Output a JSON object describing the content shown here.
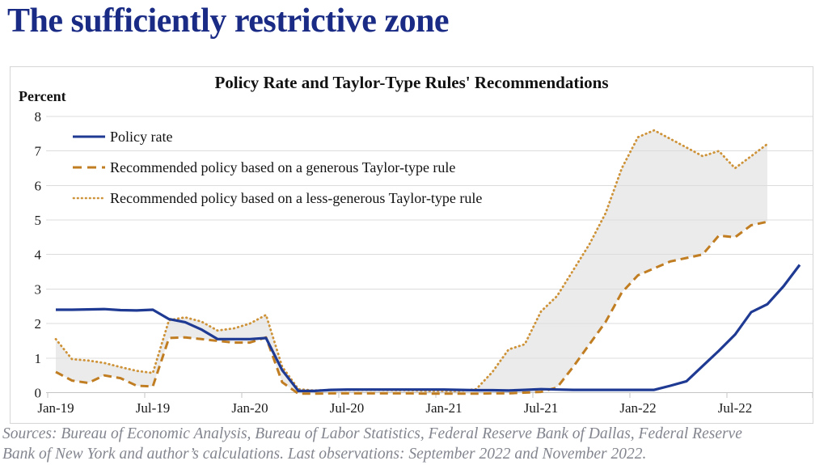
{
  "page": {
    "title": "The sufficiently restrictive zone"
  },
  "chart": {
    "title": "Policy Rate and Taylor-Type Rules' Recommendations",
    "axis_unit_label": "Percent",
    "legend": [
      {
        "label": "Policy rate",
        "style": "solid",
        "color": "#1F3A93"
      },
      {
        "label": "Recommended policy based on a generous Taylor-type rule",
        "style": "dashed",
        "color": "#C07D22"
      },
      {
        "label": "Recommended policy based on a less-generous Taylor-type rule",
        "style": "dotted",
        "color": "#CE9338"
      }
    ]
  },
  "chart_data": {
    "type": "line",
    "title": "Policy Rate and Taylor-Type Rules' Recommendations",
    "xlabel": "",
    "ylabel": "Percent",
    "ylim": [
      0,
      8
    ],
    "yticks": [
      0,
      1,
      2,
      3,
      4,
      5,
      6,
      7,
      8
    ],
    "x_tick_labels": [
      "Jan-19",
      "Jul-19",
      "Jan-20",
      "Jul-20",
      "Jan-21",
      "Jul-21",
      "Jan-22",
      "Jul-22"
    ],
    "grid": true,
    "legend_position": "top-left",
    "band_color": "#EBEBEB",
    "band_note": "gray zone shaded between the two Taylor-type rule series through Sep-2022",
    "x": [
      "Jan-19",
      "Feb-19",
      "Mar-19",
      "Apr-19",
      "May-19",
      "Jun-19",
      "Jul-19",
      "Aug-19",
      "Sep-19",
      "Oct-19",
      "Nov-19",
      "Dec-19",
      "Jan-20",
      "Feb-20",
      "Mar-20",
      "Apr-20",
      "May-20",
      "Jun-20",
      "Jul-20",
      "Aug-20",
      "Sep-20",
      "Oct-20",
      "Nov-20",
      "Dec-20",
      "Jan-21",
      "Feb-21",
      "Mar-21",
      "Apr-21",
      "May-21",
      "Jun-21",
      "Jul-21",
      "Aug-21",
      "Sep-21",
      "Oct-21",
      "Nov-21",
      "Dec-21",
      "Jan-22",
      "Feb-22",
      "Mar-22",
      "Apr-22",
      "May-22",
      "Jun-22",
      "Jul-22",
      "Aug-22",
      "Sep-22",
      "Oct-22",
      "Nov-22"
    ],
    "series": [
      {
        "name": "Policy rate",
        "color": "#1F3A93",
        "style": "solid",
        "last_observation": "November 2022",
        "values": [
          2.4,
          2.4,
          2.41,
          2.42,
          2.39,
          2.38,
          2.4,
          2.13,
          2.04,
          1.83,
          1.55,
          1.55,
          1.55,
          1.58,
          0.65,
          0.05,
          0.05,
          0.08,
          0.09,
          0.09,
          0.09,
          0.09,
          0.09,
          0.09,
          0.09,
          0.08,
          0.07,
          0.07,
          0.06,
          0.08,
          0.1,
          0.09,
          0.08,
          0.08,
          0.08,
          0.08,
          0.08,
          0.08,
          0.2,
          0.33,
          0.77,
          1.21,
          1.68,
          2.33,
          2.56,
          3.08,
          3.7
        ]
      },
      {
        "name": "Recommended policy based on a generous Taylor-type rule",
        "color": "#C07D22",
        "style": "dashed",
        "last_observation": "September 2022",
        "values": [
          0.6,
          0.35,
          0.28,
          0.5,
          0.42,
          0.2,
          0.18,
          1.58,
          1.6,
          1.55,
          1.5,
          1.45,
          1.45,
          1.6,
          0.3,
          -0.03,
          -0.03,
          -0.02,
          -0.02,
          -0.02,
          -0.02,
          -0.02,
          -0.02,
          -0.03,
          -0.03,
          -0.03,
          -0.03,
          -0.02,
          -0.02,
          0.0,
          0.02,
          0.15,
          0.75,
          1.4,
          2.05,
          2.9,
          3.4,
          3.6,
          3.8,
          3.9,
          4.0,
          4.55,
          4.5,
          4.85,
          4.95,
          null,
          null
        ]
      },
      {
        "name": "Recommended policy based on a less-generous Taylor-type rule",
        "color": "#CE9338",
        "style": "dotted",
        "last_observation": "September 2022",
        "values": [
          1.55,
          0.97,
          0.93,
          0.86,
          0.74,
          0.63,
          0.57,
          2.1,
          2.18,
          2.06,
          1.8,
          1.86,
          2.0,
          2.25,
          0.75,
          0.1,
          0.06,
          0.08,
          0.08,
          0.08,
          0.08,
          0.07,
          0.07,
          0.05,
          0.05,
          0.05,
          0.1,
          0.6,
          1.25,
          1.4,
          2.35,
          2.8,
          3.55,
          4.3,
          5.2,
          6.5,
          7.4,
          7.6,
          7.35,
          7.1,
          6.85,
          7.0,
          6.5,
          6.85,
          7.2,
          null,
          null
        ]
      }
    ]
  },
  "footer": {
    "sources": "Sources: Bureau of Economic Analysis, Bureau of Labor Statistics, Federal Reserve Bank of Dallas, Federal Reserve Bank of New York and author’s calculations. Last observations: September 2022 and November 2022."
  }
}
